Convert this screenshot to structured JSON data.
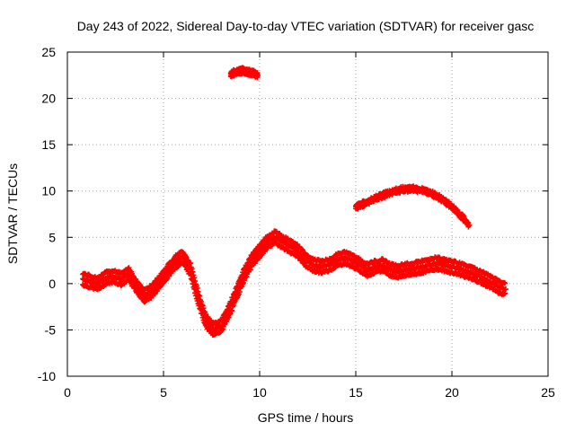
{
  "chart_data": {
    "type": "scatter",
    "title": "Day 243 of 2022, Sidereal Day-to-day VTEC variation (SDTVAR) for receiver gasc",
    "xlabel": "GPS time / hours",
    "ylabel": "SDTVAR / TECUs",
    "xlim": [
      0,
      25
    ],
    "ylim": [
      -10,
      25
    ],
    "xticks": [
      0,
      5,
      10,
      15,
      20,
      25
    ],
    "yticks": [
      -10,
      -5,
      0,
      5,
      10,
      15,
      20,
      25
    ],
    "grid": true,
    "marker_color": "#ff0000",
    "series": [
      {
        "name": "main-band",
        "band_width": 1.2,
        "x": [
          0.8,
          1.2,
          1.6,
          2.0,
          2.4,
          2.8,
          3.2,
          3.6,
          4.0,
          4.4,
          4.8,
          5.2,
          5.6,
          6.0,
          6.4,
          6.8,
          7.2,
          7.6,
          8.0,
          8.4,
          8.8,
          9.2,
          9.6,
          10.0,
          10.4,
          10.8,
          11.2,
          11.6,
          12.0,
          12.4,
          12.8,
          13.2,
          13.6,
          14.0,
          14.4,
          14.8,
          15.2,
          15.6,
          16.0,
          16.4,
          16.8,
          17.2,
          17.6,
          18.0,
          18.4,
          18.8,
          19.2,
          19.6,
          20.0,
          20.4,
          20.8,
          21.2,
          21.6,
          22.0,
          22.4,
          22.8
        ],
        "y": [
          0.5,
          0.2,
          0.0,
          0.6,
          0.8,
          0.5,
          1.0,
          -0.3,
          -1.3,
          -0.8,
          0.2,
          1.3,
          2.3,
          2.9,
          1.5,
          -1.5,
          -4.0,
          -5.0,
          -4.5,
          -3.0,
          -1.0,
          1.0,
          2.5,
          3.5,
          4.5,
          5.0,
          4.5,
          4.0,
          3.5,
          2.5,
          2.0,
          1.8,
          2.0,
          2.5,
          2.8,
          2.5,
          2.0,
          1.5,
          1.8,
          2.0,
          1.5,
          1.3,
          1.5,
          1.6,
          1.8,
          2.0,
          2.2,
          2.0,
          1.8,
          1.6,
          1.3,
          1.0,
          0.6,
          0.2,
          -0.3,
          -0.6
        ]
      },
      {
        "name": "upper-arc",
        "band_width": 0.4,
        "x": [
          15.0,
          15.5,
          16.0,
          16.5,
          17.0,
          17.5,
          18.0,
          18.5,
          19.0,
          19.5,
          20.0,
          20.5,
          20.9
        ],
        "y": [
          8.3,
          8.7,
          9.2,
          9.6,
          10.0,
          10.2,
          10.2,
          10.1,
          9.7,
          9.1,
          8.3,
          7.3,
          6.3
        ]
      },
      {
        "name": "top-segment",
        "band_width": 0.4,
        "x": [
          8.5,
          8.7,
          8.9,
          9.1,
          9.3,
          9.5,
          9.7,
          9.9
        ],
        "y": [
          22.6,
          22.8,
          22.9,
          23.0,
          22.9,
          22.8,
          22.7,
          22.5
        ]
      }
    ]
  }
}
